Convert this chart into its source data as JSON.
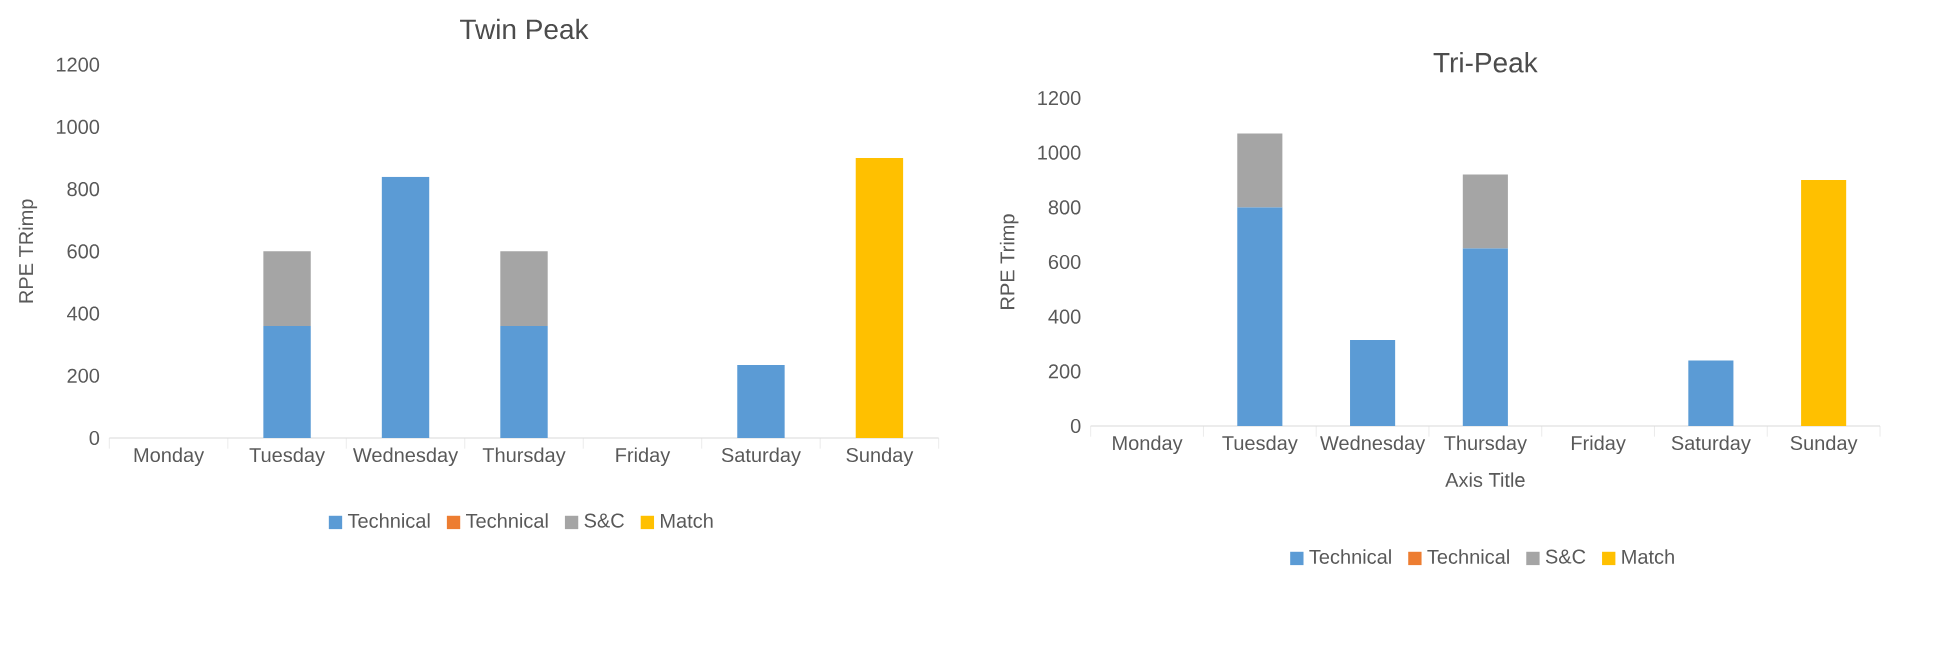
{
  "chart_data": [
    {
      "type": "bar",
      "stacked": true,
      "title": "Twin Peak",
      "ylabel": "RPE TRimp",
      "categories": [
        "Monday",
        "Tuesday",
        "Wednesday",
        "Thursday",
        "Friday",
        "Saturday",
        "Sunday"
      ],
      "series": [
        {
          "name": "Technical",
          "color": "#5b9bd5",
          "values": [
            null,
            360,
            840,
            360,
            null,
            235,
            null
          ]
        },
        {
          "name": "Technical",
          "color": "#ed7d31",
          "values": [
            null,
            null,
            null,
            null,
            null,
            null,
            null
          ]
        },
        {
          "name": "S&C",
          "color": "#a5a5a5",
          "values": [
            null,
            240,
            null,
            240,
            null,
            null,
            null
          ]
        },
        {
          "name": "Match",
          "color": "#ffc000",
          "values": [
            null,
            null,
            null,
            null,
            null,
            null,
            900
          ]
        }
      ],
      "ylim": [
        0,
        1200
      ],
      "yticks": [
        0,
        200,
        400,
        600,
        800,
        1000,
        1200
      ],
      "legend": "bottom"
    },
    {
      "type": "bar",
      "stacked": true,
      "title": "Tri-Peak",
      "xlabel": "Axis Title",
      "ylabel": "RPE Trimp",
      "categories": [
        "Monday",
        "Tuesday",
        "Wednesday",
        "Thursday",
        "Friday",
        "Saturday",
        "Sunday"
      ],
      "series": [
        {
          "name": "Technical",
          "color": "#5b9bd5",
          "values": [
            null,
            800,
            315,
            650,
            null,
            240,
            null
          ]
        },
        {
          "name": "Technical",
          "color": "#ed7d31",
          "values": [
            null,
            null,
            null,
            null,
            null,
            null,
            null
          ]
        },
        {
          "name": "S&C",
          "color": "#a5a5a5",
          "values": [
            null,
            270,
            null,
            270,
            null,
            null,
            null
          ]
        },
        {
          "name": "Match",
          "color": "#ffc000",
          "values": [
            null,
            null,
            null,
            null,
            null,
            null,
            900
          ]
        }
      ],
      "ylim": [
        0,
        1200
      ],
      "yticks": [
        0,
        200,
        400,
        600,
        800,
        1000,
        1200
      ],
      "legend": "bottom"
    }
  ]
}
